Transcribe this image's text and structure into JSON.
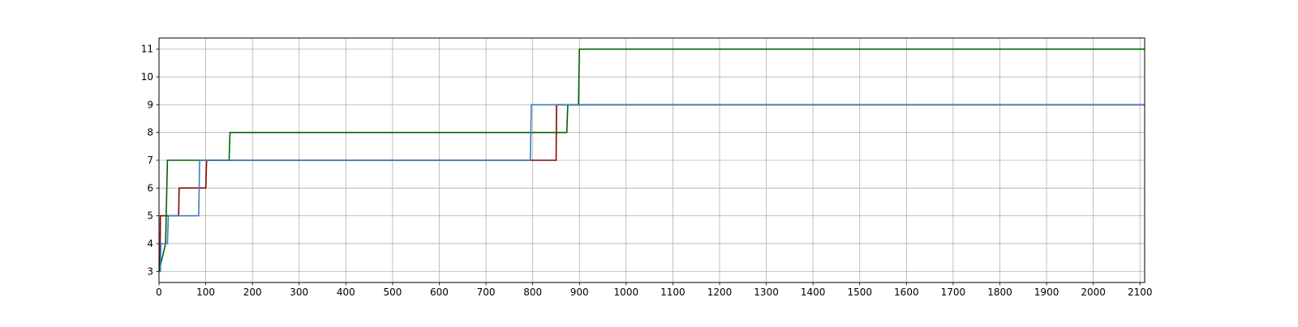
{
  "chart_data": {
    "type": "line",
    "title": "",
    "xlabel": "",
    "ylabel": "",
    "xlim": [
      0,
      2110
    ],
    "ylim": [
      2.6,
      11.4
    ],
    "xticks": [
      0,
      100,
      200,
      300,
      400,
      500,
      600,
      700,
      800,
      900,
      1000,
      1100,
      1200,
      1300,
      1400,
      1500,
      1600,
      1700,
      1800,
      1900,
      2000,
      2100
    ],
    "yticks": [
      3,
      4,
      5,
      6,
      7,
      8,
      9,
      10,
      11
    ],
    "grid": true,
    "legend": "none",
    "series": [
      {
        "color": "#8b0000",
        "points": [
          [
            0,
            3
          ],
          [
            2,
            3
          ],
          [
            3,
            5
          ],
          [
            42,
            5
          ],
          [
            43,
            6
          ],
          [
            100,
            6
          ],
          [
            102,
            7
          ],
          [
            795,
            7
          ],
          [
            850,
            7
          ],
          [
            851,
            9
          ],
          [
            2110,
            9
          ]
        ]
      },
      {
        "color": "#006400",
        "points": [
          [
            0,
            3
          ],
          [
            14,
            4
          ],
          [
            18,
            7
          ],
          [
            87,
            7
          ],
          [
            150,
            7
          ],
          [
            152,
            8
          ],
          [
            873,
            8
          ],
          [
            875,
            9
          ],
          [
            898,
            9
          ],
          [
            900,
            11
          ],
          [
            2110,
            11
          ]
        ]
      },
      {
        "color": "#3a7ebf",
        "points": [
          [
            0,
            3
          ],
          [
            3,
            3
          ],
          [
            4,
            4
          ],
          [
            18,
            4
          ],
          [
            20,
            5
          ],
          [
            85,
            5
          ],
          [
            87,
            7
          ],
          [
            795,
            7
          ],
          [
            797,
            9
          ],
          [
            2110,
            9
          ]
        ]
      }
    ]
  }
}
